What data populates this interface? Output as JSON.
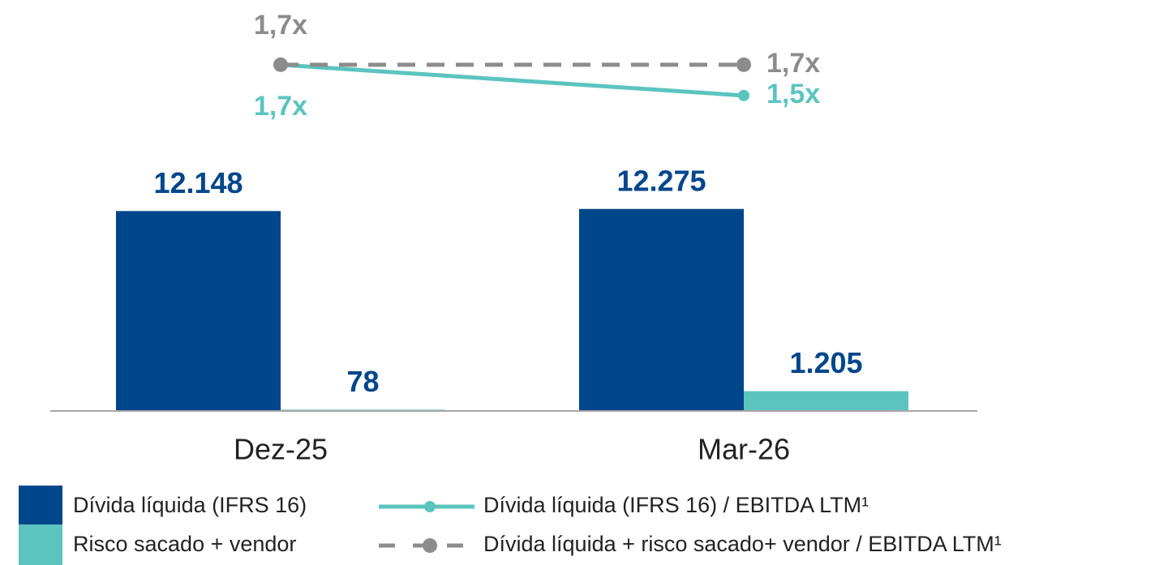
{
  "chart_data": {
    "type": "bar",
    "categories": [
      "Dez-25",
      "Mar-26"
    ],
    "ylim": [
      0,
      23000
    ],
    "y2lim": [
      -0.55,
      1.91
    ],
    "series": [
      {
        "name": "Dívida líquida (IFRS 16)",
        "type": "bar",
        "color": "#00468b",
        "values": [
          12148,
          12275
        ],
        "value_labels": [
          "12.148",
          "12.275"
        ]
      },
      {
        "name": "Risco sacado + vendor",
        "type": "bar",
        "color": "#5bc4bf",
        "values": [
          78,
          1205
        ],
        "value_labels": [
          "78",
          "1.205"
        ]
      },
      {
        "name": "Dívida líquida (IFRS 16) / EBITDA LTM¹",
        "type": "line",
        "axis": "y2",
        "color": "#5bc4bf",
        "values": [
          1.7,
          1.5
        ],
        "value_labels": [
          "1,7x",
          "1,5x"
        ]
      },
      {
        "name": "Dívida líquida + risco sacado+ vendor / EBITDA LTM¹",
        "type": "line",
        "axis": "y2",
        "dashed": true,
        "color": "#8c8c8c",
        "values": [
          1.7,
          1.7
        ],
        "value_labels": [
          "1,7x",
          "1,7x"
        ]
      }
    ]
  }
}
